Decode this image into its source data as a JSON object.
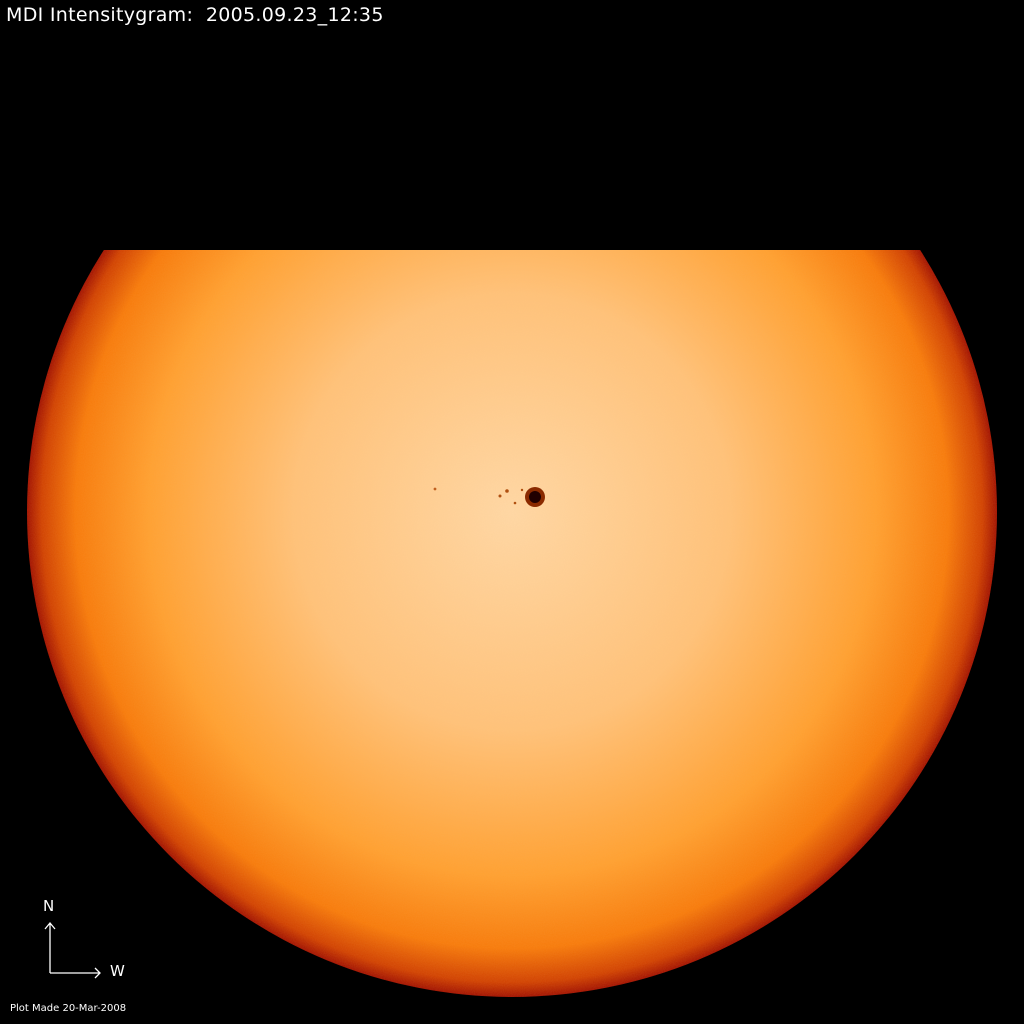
{
  "title": "MDI Intensitygram:  2005.09.23_12:35",
  "compass": {
    "north_label": "N",
    "west_label": "W"
  },
  "footer": "Plot Made 20-Mar-2008",
  "colors": {
    "background": "#000000",
    "disk_center": "#ffd8a6",
    "disk_mid": "#ff9a2a",
    "limb": "#a81000",
    "text": "#ffffff"
  }
}
